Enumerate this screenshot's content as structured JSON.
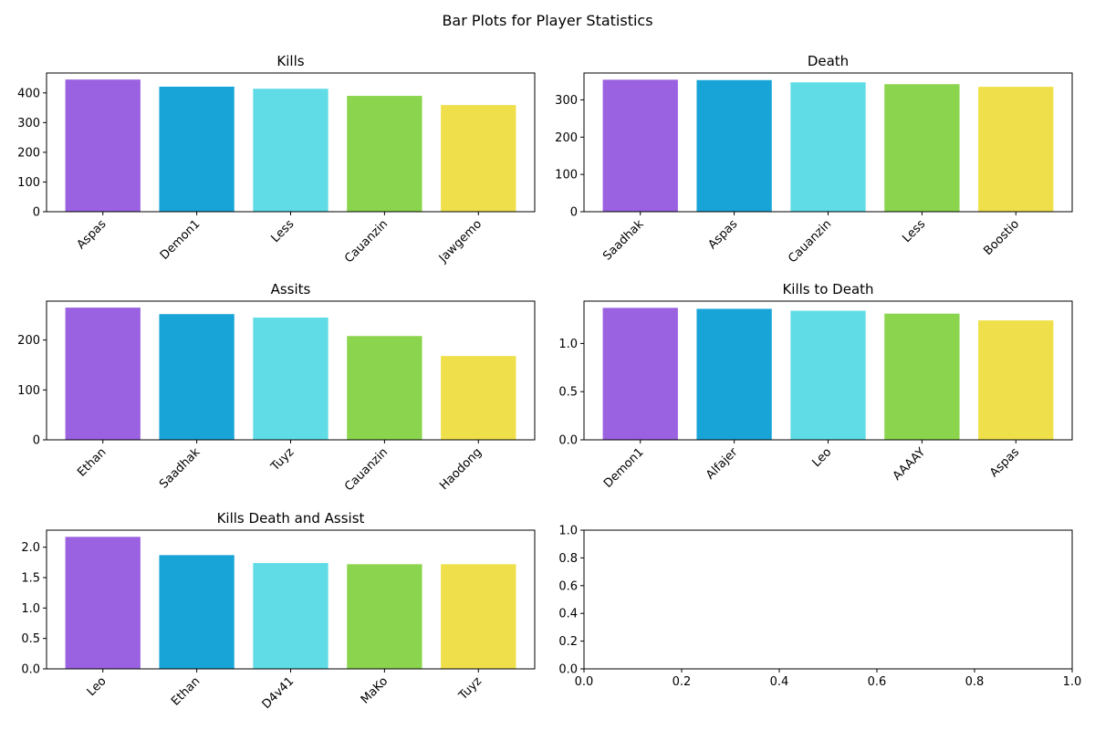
{
  "figure_title": "Bar Plots for Player Statistics",
  "colors": [
    "#9a62e0",
    "#19a4d8",
    "#5fdce6",
    "#8bd44d",
    "#efe04b"
  ],
  "chart_data": [
    {
      "type": "bar",
      "title": "Kills",
      "categories": [
        "Aspas",
        "Demon1",
        "Less",
        "Cauanzin",
        "Jawgemo"
      ],
      "values": [
        445,
        421,
        414,
        390,
        359
      ],
      "ylim": [
        0,
        467
      ],
      "yticks": [
        0,
        100,
        200,
        300,
        400
      ],
      "ytick_labels": [
        "0",
        "100",
        "200",
        "300",
        "400"
      ]
    },
    {
      "type": "bar",
      "title": "Death",
      "categories": [
        "Saadhak",
        "Aspas",
        "Cauanzin",
        "Less",
        "Boostio"
      ],
      "values": [
        354,
        353,
        347,
        342,
        335
      ],
      "ylim": [
        0,
        372
      ],
      "yticks": [
        0,
        100,
        200,
        300
      ],
      "ytick_labels": [
        "0",
        "100",
        "200",
        "300"
      ]
    },
    {
      "type": "bar",
      "title": "Assits",
      "categories": [
        "Ethan",
        "Saadhak",
        "Tuyz",
        "Cauanzin",
        "Haodong"
      ],
      "values": [
        265,
        252,
        245,
        208,
        168
      ],
      "ylim": [
        0,
        278
      ],
      "yticks": [
        0,
        100,
        200
      ],
      "ytick_labels": [
        "0",
        "100",
        "200"
      ]
    },
    {
      "type": "bar",
      "title": "Kills to Death",
      "categories": [
        "Demon1",
        "Alfajer",
        "Leo",
        "AAAAY",
        "Aspas"
      ],
      "values": [
        1.37,
        1.36,
        1.34,
        1.31,
        1.24
      ],
      "ylim": [
        0,
        1.44
      ],
      "yticks": [
        0,
        0.5,
        1.0
      ],
      "ytick_labels": [
        "0.0",
        "0.5",
        "1.0"
      ]
    },
    {
      "type": "bar",
      "title": "Kills Death and Assist",
      "categories": [
        "Leo",
        "Ethan",
        "D4v41",
        "MaKo",
        "Tuyz"
      ],
      "values": [
        2.17,
        1.87,
        1.74,
        1.72,
        1.72
      ],
      "ylim": [
        0,
        2.28
      ],
      "yticks": [
        0,
        0.5,
        1.0,
        1.5,
        2.0
      ],
      "ytick_labels": [
        "0.0",
        "0.5",
        "1.0",
        "1.5",
        "2.0"
      ]
    },
    {
      "type": "empty",
      "title": "",
      "xlim": [
        0,
        1
      ],
      "ylim": [
        0,
        1
      ],
      "xticks": [
        0,
        0.2,
        0.4,
        0.6,
        0.8,
        1.0
      ],
      "xtick_labels": [
        "0.0",
        "0.2",
        "0.4",
        "0.6",
        "0.8",
        "1.0"
      ],
      "yticks": [
        0,
        0.2,
        0.4,
        0.6,
        0.8,
        1.0
      ],
      "ytick_labels": [
        "0.0",
        "0.2",
        "0.4",
        "0.6",
        "0.8",
        "1.0"
      ]
    }
  ]
}
